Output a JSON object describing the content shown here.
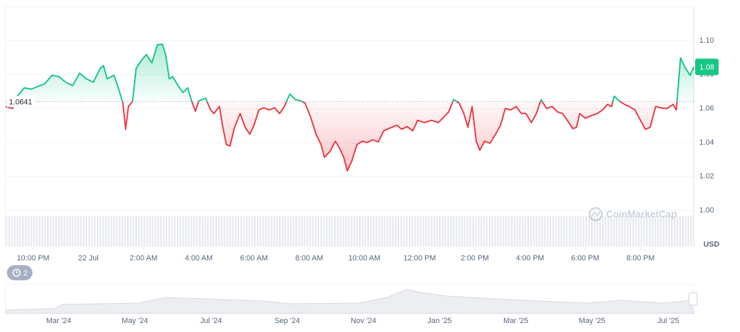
{
  "chart_data": {
    "type": "line",
    "x": [
      0,
      0.25,
      0.43,
      0.68,
      0.93,
      1.18,
      1.43,
      1.68,
      1.93,
      2.18,
      2.43,
      2.68,
      2.93,
      3.18,
      3.43,
      3.55,
      3.68,
      3.93,
      4.1,
      4.25,
      4.35,
      4.45,
      4.6,
      4.73,
      4.93,
      5.1,
      5.3,
      5.5,
      5.68,
      5.8,
      5.93,
      6.05,
      6.25,
      6.43,
      6.6,
      6.75,
      6.88,
      7,
      7.25,
      7.43,
      7.55,
      7.75,
      7.85,
      8,
      8.13,
      8.3,
      8.5,
      8.68,
      8.85,
      9,
      9.18,
      9.35,
      9.55,
      9.75,
      9.93,
      10.1,
      10.3,
      10.5,
      10.7,
      10.85,
      11.05,
      11.25,
      11.43,
      11.55,
      11.75,
      11.95,
      12.1,
      12.25,
      12.38,
      12.55,
      12.73,
      12.93,
      13.1,
      13.3,
      13.5,
      13.7,
      13.93,
      14.18,
      14.35,
      14.55,
      14.75,
      14.93,
      15.18,
      15.43,
      15.68,
      15.88,
      16.05,
      16.23,
      16.43,
      16.6,
      16.75,
      16.9,
      17.05,
      17.18,
      17.35,
      17.55,
      17.75,
      17.93,
      18.1,
      18.3,
      18.5,
      18.68,
      18.85,
      19.05,
      19.23,
      19.4,
      19.6,
      19.8,
      20,
      20.18,
      20.35,
      20.55,
      20.68,
      20.8,
      21,
      21.23,
      21.43,
      21.63,
      21.8,
      21.95,
      22.05,
      22.23,
      22.43,
      22.6,
      22.8,
      23,
      23.18,
      23.35,
      23.55,
      23.75,
      23.95,
      24.18,
      24.3,
      24.45,
      24.63,
      24.8,
      24.93
    ],
    "values": [
      1.0612,
      1.06,
      1.0673,
      1.0722,
      1.0714,
      1.0731,
      1.0747,
      1.0796,
      1.0788,
      1.0755,
      1.0735,
      1.0808,
      1.0775,
      1.0755,
      1.0837,
      1.0853,
      1.0775,
      1.0796,
      1.0714,
      1.0633,
      1.0478,
      1.0612,
      1.0641,
      1.0837,
      1.0886,
      1.0918,
      1.0869,
      1.0975,
      1.0979,
      1.0918,
      1.0775,
      1.0788,
      1.0735,
      1.0694,
      1.0722,
      1.0641,
      1.0584,
      1.0645,
      1.0661,
      1.0592,
      1.0571,
      1.0612,
      1.051,
      1.0388,
      1.038,
      1.049,
      1.0571,
      1.049,
      1.0449,
      1.0502,
      1.0592,
      1.0604,
      1.0592,
      1.0604,
      1.0571,
      1.0612,
      1.0686,
      1.0653,
      1.0645,
      1.0633,
      1.0551,
      1.0449,
      1.0388,
      1.0314,
      1.0347,
      1.0408,
      1.0367,
      1.0314,
      1.0233,
      1.0294,
      1.0388,
      1.0408,
      1.04,
      1.0416,
      1.0404,
      1.0469,
      1.0486,
      1.0502,
      1.0478,
      1.0494,
      1.0469,
      1.0531,
      1.0518,
      1.0531,
      1.0518,
      1.0551,
      1.058,
      1.0653,
      1.0633,
      1.0571,
      1.049,
      1.0612,
      1.0408,
      1.0355,
      1.0408,
      1.0396,
      1.0449,
      1.0502,
      1.06,
      1.0592,
      1.0612,
      1.0571,
      1.0571,
      1.0518,
      1.0571,
      1.0653,
      1.06,
      1.0612,
      1.058,
      1.0571,
      1.0531,
      1.0482,
      1.049,
      1.0571,
      1.0543,
      1.0559,
      1.0571,
      1.0592,
      1.0624,
      1.0612,
      1.0673,
      1.0645,
      1.0624,
      1.0612,
      1.0592,
      1.0531,
      1.0478,
      1.049,
      1.0612,
      1.0604,
      1.06,
      1.0624,
      1.0592,
      1.0898,
      1.0837,
      1.0796,
      1.0845
    ],
    "up_color": "#16c784",
    "down_color": "#ea3943",
    "baseline": 1.0641,
    "last_price": 1.08,
    "y_unit": "USD",
    "xlim": [
      0,
      24.93
    ],
    "ylim": [
      0.98,
      1.12
    ],
    "xticks": [
      {
        "value": 1,
        "label": "10:00 PM"
      },
      {
        "value": 3,
        "label": "22 Jul"
      },
      {
        "value": 5,
        "label": "2:00 AM"
      },
      {
        "value": 7,
        "label": "4:00 AM"
      },
      {
        "value": 9,
        "label": "6:00 AM"
      },
      {
        "value": 11,
        "label": "8:00 AM"
      },
      {
        "value": 13,
        "label": "10:00 AM"
      },
      {
        "value": 15,
        "label": "12:00 PM"
      },
      {
        "value": 17,
        "label": "2:00 PM"
      },
      {
        "value": 19,
        "label": "4:00 PM"
      },
      {
        "value": 21,
        "label": "6:00 PM"
      },
      {
        "value": 23,
        "label": "8:00 PM"
      }
    ],
    "yticks": [
      {
        "value": 1,
        "label": "1.00"
      },
      {
        "value": 1.02,
        "label": "1.02"
      },
      {
        "value": 1.04,
        "label": "1.04"
      },
      {
        "value": 1.06,
        "label": "1.06"
      },
      {
        "value": 1.08,
        "label": "1.08"
      },
      {
        "value": 1.1,
        "label": "1.10"
      }
    ],
    "grid": true
  },
  "navigator": {
    "labels": [
      "Mar '24",
      "May '24",
      "Jul '24",
      "Sep '24",
      "Nov '24",
      "Jan '25",
      "Mar '25",
      "May '25",
      "Jul '25"
    ]
  },
  "watermark": "CoinMarketCap",
  "badge": 2
}
